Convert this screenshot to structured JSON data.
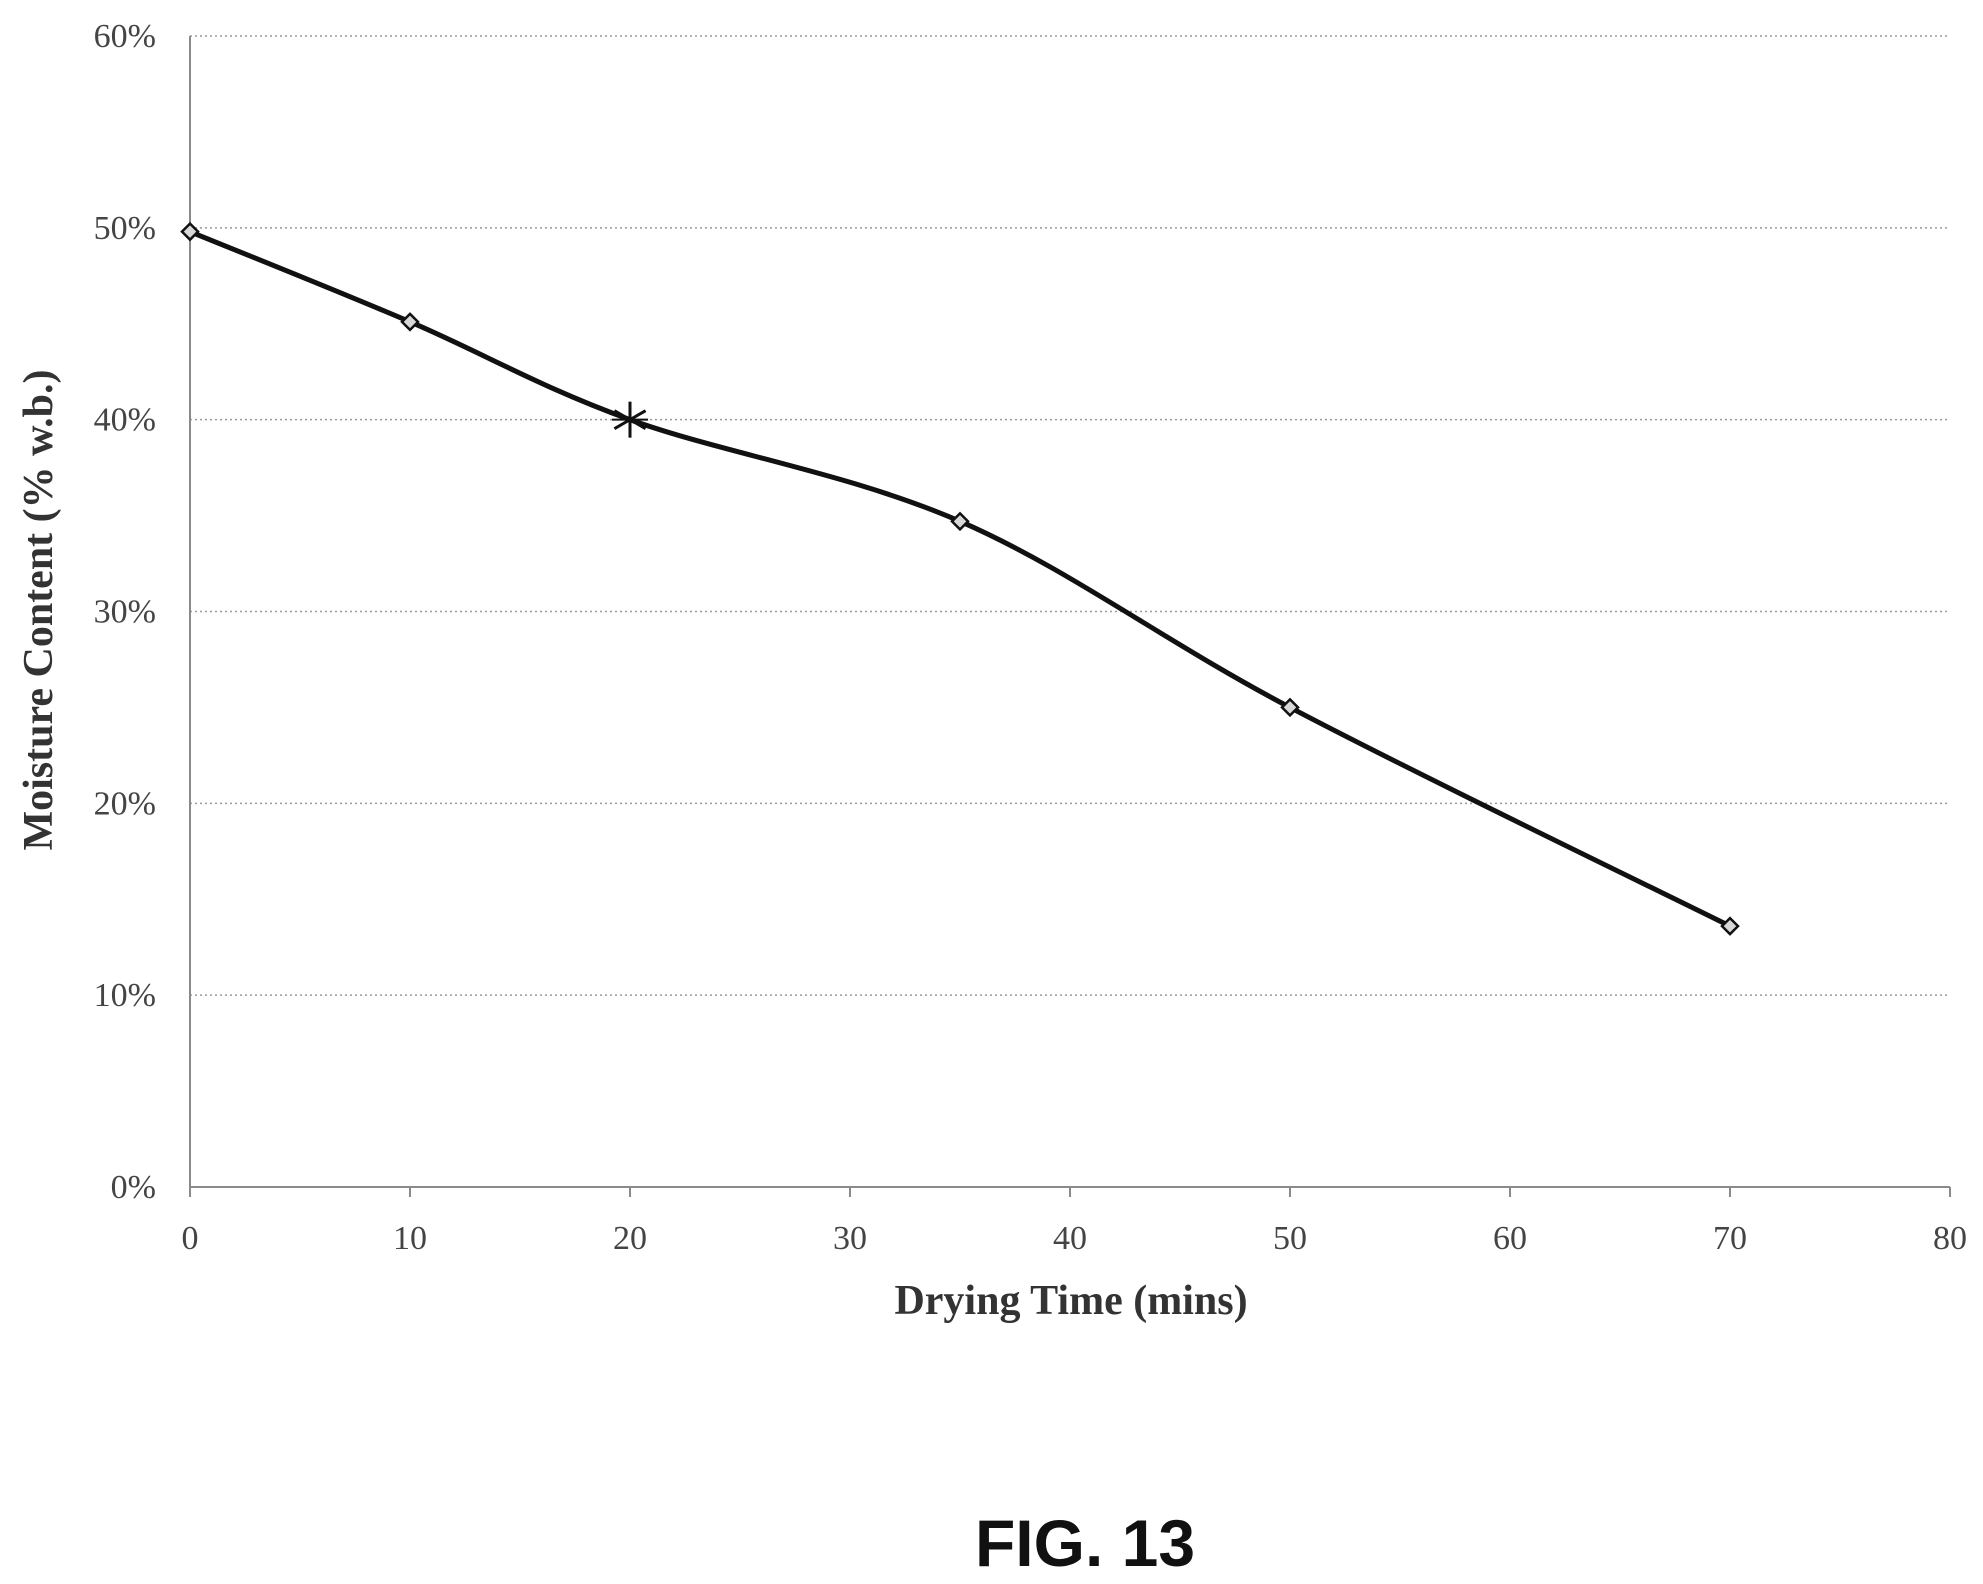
{
  "chart_data": {
    "type": "line",
    "xlabel": "Drying Time (mins)",
    "ylabel": "Moisture Content (% w.b.)",
    "xlim": [
      0,
      80
    ],
    "ylim": [
      0,
      60
    ],
    "x_ticks": [
      0,
      10,
      20,
      30,
      40,
      50,
      60,
      70,
      80
    ],
    "y_ticks": [
      0,
      10,
      20,
      30,
      40,
      50,
      60
    ],
    "y_tick_labels": [
      "0%",
      "10%",
      "20%",
      "30%",
      "40%",
      "50%",
      "60%"
    ],
    "grid": "horizontal dotted",
    "smooth": true,
    "series": [
      {
        "x": [
          0,
          10,
          20,
          35,
          50,
          70
        ],
        "y": [
          49.8,
          45.1,
          40.0,
          34.7,
          25.0,
          13.6
        ],
        "markers": [
          "diamond",
          "diamond",
          "asterisk",
          "diamond",
          "diamond",
          "diamond"
        ],
        "color": "#111111"
      }
    ]
  },
  "figure_label": "FIG. 13"
}
